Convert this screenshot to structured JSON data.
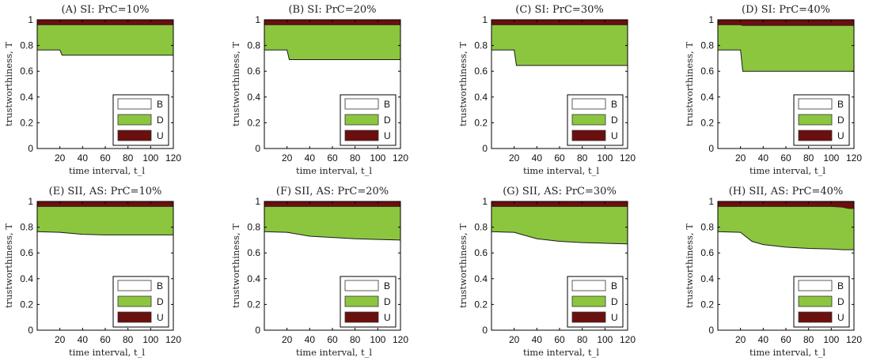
{
  "colors": {
    "B": "#ffffff",
    "D": "#8cc63f",
    "U": "#6b0f0f",
    "axis": "#000000"
  },
  "chart_data": [
    {
      "type": "area",
      "title": "(A) SI: PrC=10%",
      "xlabel": "time interval, t_l",
      "ylabel": "trustworthiness, T",
      "xlim": [
        0,
        120
      ],
      "ylim": [
        0,
        1
      ],
      "xticks": [
        "20",
        "40",
        "60",
        "80",
        "100",
        "120"
      ],
      "yticks": [
        "0",
        "0.2",
        "0.4",
        "0.6",
        "0.8",
        "1"
      ],
      "legend": [
        "B",
        "D",
        "U"
      ],
      "legend_position": "bottom-right",
      "x": [
        0,
        20,
        22,
        120
      ],
      "B": [
        0.765,
        0.765,
        0.725,
        0.725
      ],
      "U": [
        0.04,
        0.04,
        0.04,
        0.04
      ]
    },
    {
      "type": "area",
      "title": "(B) SI: PrC=20%",
      "xlabel": "time interval, t_l",
      "ylabel": "trustworthiness, T",
      "xlim": [
        0,
        120
      ],
      "ylim": [
        0,
        1
      ],
      "xticks": [
        "20",
        "40",
        "60",
        "80",
        "100",
        "120"
      ],
      "yticks": [
        "0",
        "0.2",
        "0.4",
        "0.6",
        "0.8",
        "1"
      ],
      "legend": [
        "B",
        "D",
        "U"
      ],
      "legend_position": "bottom-right",
      "x": [
        0,
        20,
        22,
        120
      ],
      "B": [
        0.765,
        0.765,
        0.69,
        0.69
      ],
      "U": [
        0.04,
        0.04,
        0.04,
        0.04
      ]
    },
    {
      "type": "area",
      "title": "(C) SI: PrC=30%",
      "xlabel": "time interval, t_l",
      "ylabel": "trustworthiness, T",
      "xlim": [
        0,
        120
      ],
      "ylim": [
        0,
        1
      ],
      "xticks": [
        "20",
        "40",
        "60",
        "80",
        "100",
        "120"
      ],
      "yticks": [
        "0",
        "0.2",
        "0.4",
        "0.6",
        "0.8",
        "1"
      ],
      "legend": [
        "B",
        "D",
        "U"
      ],
      "legend_position": "bottom-right",
      "x": [
        0,
        20,
        22,
        120
      ],
      "B": [
        0.765,
        0.765,
        0.645,
        0.645
      ],
      "U": [
        0.04,
        0.04,
        0.04,
        0.04
      ]
    },
    {
      "type": "area",
      "title": "(D) SI: PrC=40%",
      "xlabel": "time interval, t_l",
      "ylabel": "trustworthiness, T",
      "xlim": [
        0,
        120
      ],
      "ylim": [
        0,
        1
      ],
      "xticks": [
        "20",
        "40",
        "60",
        "80",
        "100",
        "120"
      ],
      "yticks": [
        "0",
        "0.2",
        "0.4",
        "0.6",
        "0.8",
        "1"
      ],
      "legend": [
        "B",
        "D",
        "U"
      ],
      "legend_position": "bottom-right",
      "x": [
        0,
        20,
        22,
        120
      ],
      "B": [
        0.765,
        0.765,
        0.6,
        0.6
      ],
      "U": [
        0.04,
        0.04,
        0.045,
        0.045
      ]
    },
    {
      "type": "area",
      "title": "(E) SII, AS: PrC=10%",
      "xlabel": "time interval, t_l",
      "ylabel": "trustworthiness, T",
      "xlim": [
        0,
        120
      ],
      "ylim": [
        0,
        1
      ],
      "xticks": [
        "20",
        "40",
        "60",
        "80",
        "100",
        "120"
      ],
      "yticks": [
        "0",
        "0.2",
        "0.4",
        "0.6",
        "0.8",
        "1"
      ],
      "legend": [
        "B",
        "D",
        "U"
      ],
      "legend_position": "bottom-right",
      "x": [
        0,
        20,
        40,
        60,
        80,
        100,
        120
      ],
      "B": [
        0.765,
        0.76,
        0.745,
        0.74,
        0.74,
        0.74,
        0.74
      ],
      "U": [
        0.04,
        0.04,
        0.04,
        0.04,
        0.04,
        0.04,
        0.04
      ]
    },
    {
      "type": "area",
      "title": "(F) SII, AS: PrC=20%",
      "xlabel": "time interval, t_l",
      "ylabel": "trustworthiness, T",
      "xlim": [
        0,
        120
      ],
      "ylim": [
        0,
        1
      ],
      "xticks": [
        "20",
        "40",
        "60",
        "80",
        "100",
        "120"
      ],
      "yticks": [
        "0",
        "0.2",
        "0.4",
        "0.6",
        "0.8",
        "1"
      ],
      "legend": [
        "B",
        "D",
        "U"
      ],
      "legend_position": "bottom-right",
      "x": [
        0,
        20,
        40,
        60,
        80,
        100,
        120
      ],
      "B": [
        0.765,
        0.76,
        0.73,
        0.72,
        0.71,
        0.705,
        0.7
      ],
      "U": [
        0.04,
        0.04,
        0.04,
        0.04,
        0.04,
        0.04,
        0.04
      ]
    },
    {
      "type": "area",
      "title": "(G) SII, AS: PrC=30%",
      "xlabel": "time interval, t_l",
      "ylabel": "trustworthiness, T",
      "xlim": [
        0,
        120
      ],
      "ylim": [
        0,
        1
      ],
      "xticks": [
        "20",
        "40",
        "60",
        "80",
        "100",
        "120"
      ],
      "yticks": [
        "0",
        "0.2",
        "0.4",
        "0.6",
        "0.8",
        "1"
      ],
      "legend": [
        "B",
        "D",
        "U"
      ],
      "legend_position": "bottom-right",
      "x": [
        0,
        20,
        40,
        60,
        80,
        100,
        120
      ],
      "B": [
        0.765,
        0.76,
        0.71,
        0.69,
        0.68,
        0.675,
        0.67
      ],
      "U": [
        0.04,
        0.04,
        0.04,
        0.04,
        0.04,
        0.04,
        0.04
      ]
    },
    {
      "type": "area",
      "title": "(H) SII, AS: PrC=40%",
      "xlabel": "time interval, t_l",
      "ylabel": "trustworthiness, T",
      "xlim": [
        0,
        120
      ],
      "ylim": [
        0,
        1
      ],
      "xticks": [
        "20",
        "40",
        "60",
        "80",
        "100",
        "120"
      ],
      "yticks": [
        "0",
        "0.2",
        "0.4",
        "0.6",
        "0.8",
        "1"
      ],
      "legend": [
        "B",
        "D",
        "U"
      ],
      "legend_position": "bottom-right",
      "x": [
        0,
        20,
        30,
        40,
        60,
        80,
        100,
        110,
        115,
        120
      ],
      "B": [
        0.765,
        0.76,
        0.69,
        0.665,
        0.645,
        0.635,
        0.63,
        0.625,
        0.625,
        0.625
      ],
      "U": [
        0.04,
        0.04,
        0.04,
        0.04,
        0.04,
        0.04,
        0.04,
        0.045,
        0.055,
        0.055
      ]
    }
  ]
}
